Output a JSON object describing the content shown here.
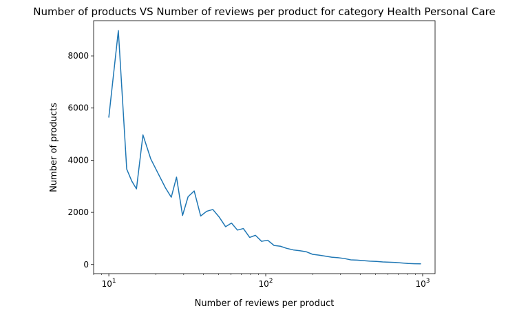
{
  "chart_data": {
    "type": "line",
    "title": "Number of products VS Number of reviews per product for category Health Personal Care",
    "xlabel": "Number of reviews per product",
    "ylabel": "Number of products",
    "xscale": "log",
    "xlim": [
      8,
      1200
    ],
    "ylim": [
      -350,
      9350
    ],
    "grid": false,
    "series_color": "#1f77b4",
    "y_ticks": [
      "0",
      "2000",
      "4000",
      "6000",
      "8000"
    ],
    "y_tick_values": [
      0,
      2000,
      4000,
      6000,
      8000
    ],
    "x_ticks": [
      {
        "base": "10",
        "exp": "1",
        "value": 10
      },
      {
        "base": "10",
        "exp": "2",
        "value": 100
      },
      {
        "base": "10",
        "exp": "3",
        "value": 1000
      }
    ],
    "series": [
      {
        "x": [
          10,
          11.5,
          13,
          14,
          15,
          16.5,
          18.5,
          20.5,
          23,
          25,
          27,
          29.5,
          32,
          35,
          38.5,
          42,
          46,
          50.5,
          55.5,
          60.5,
          66,
          72,
          79,
          86,
          94,
          103,
          113,
          124,
          136,
          150,
          165,
          181,
          199,
          218,
          240,
          263,
          289,
          317,
          348,
          382,
          420,
          461,
          506,
          556,
          610,
          670,
          735,
          807,
          886,
          970
        ],
        "y": [
          5650,
          8970,
          3660,
          3200,
          2900,
          4970,
          4050,
          3520,
          2930,
          2580,
          3350,
          1880,
          2600,
          2820,
          1860,
          2040,
          2110,
          1820,
          1450,
          1590,
          1320,
          1380,
          1040,
          1120,
          890,
          930,
          730,
          700,
          620,
          560,
          530,
          490,
          390,
          360,
          320,
          280,
          260,
          230,
          180,
          170,
          150,
          130,
          120,
          100,
          90,
          80,
          60,
          40,
          30,
          25
        ]
      }
    ]
  }
}
